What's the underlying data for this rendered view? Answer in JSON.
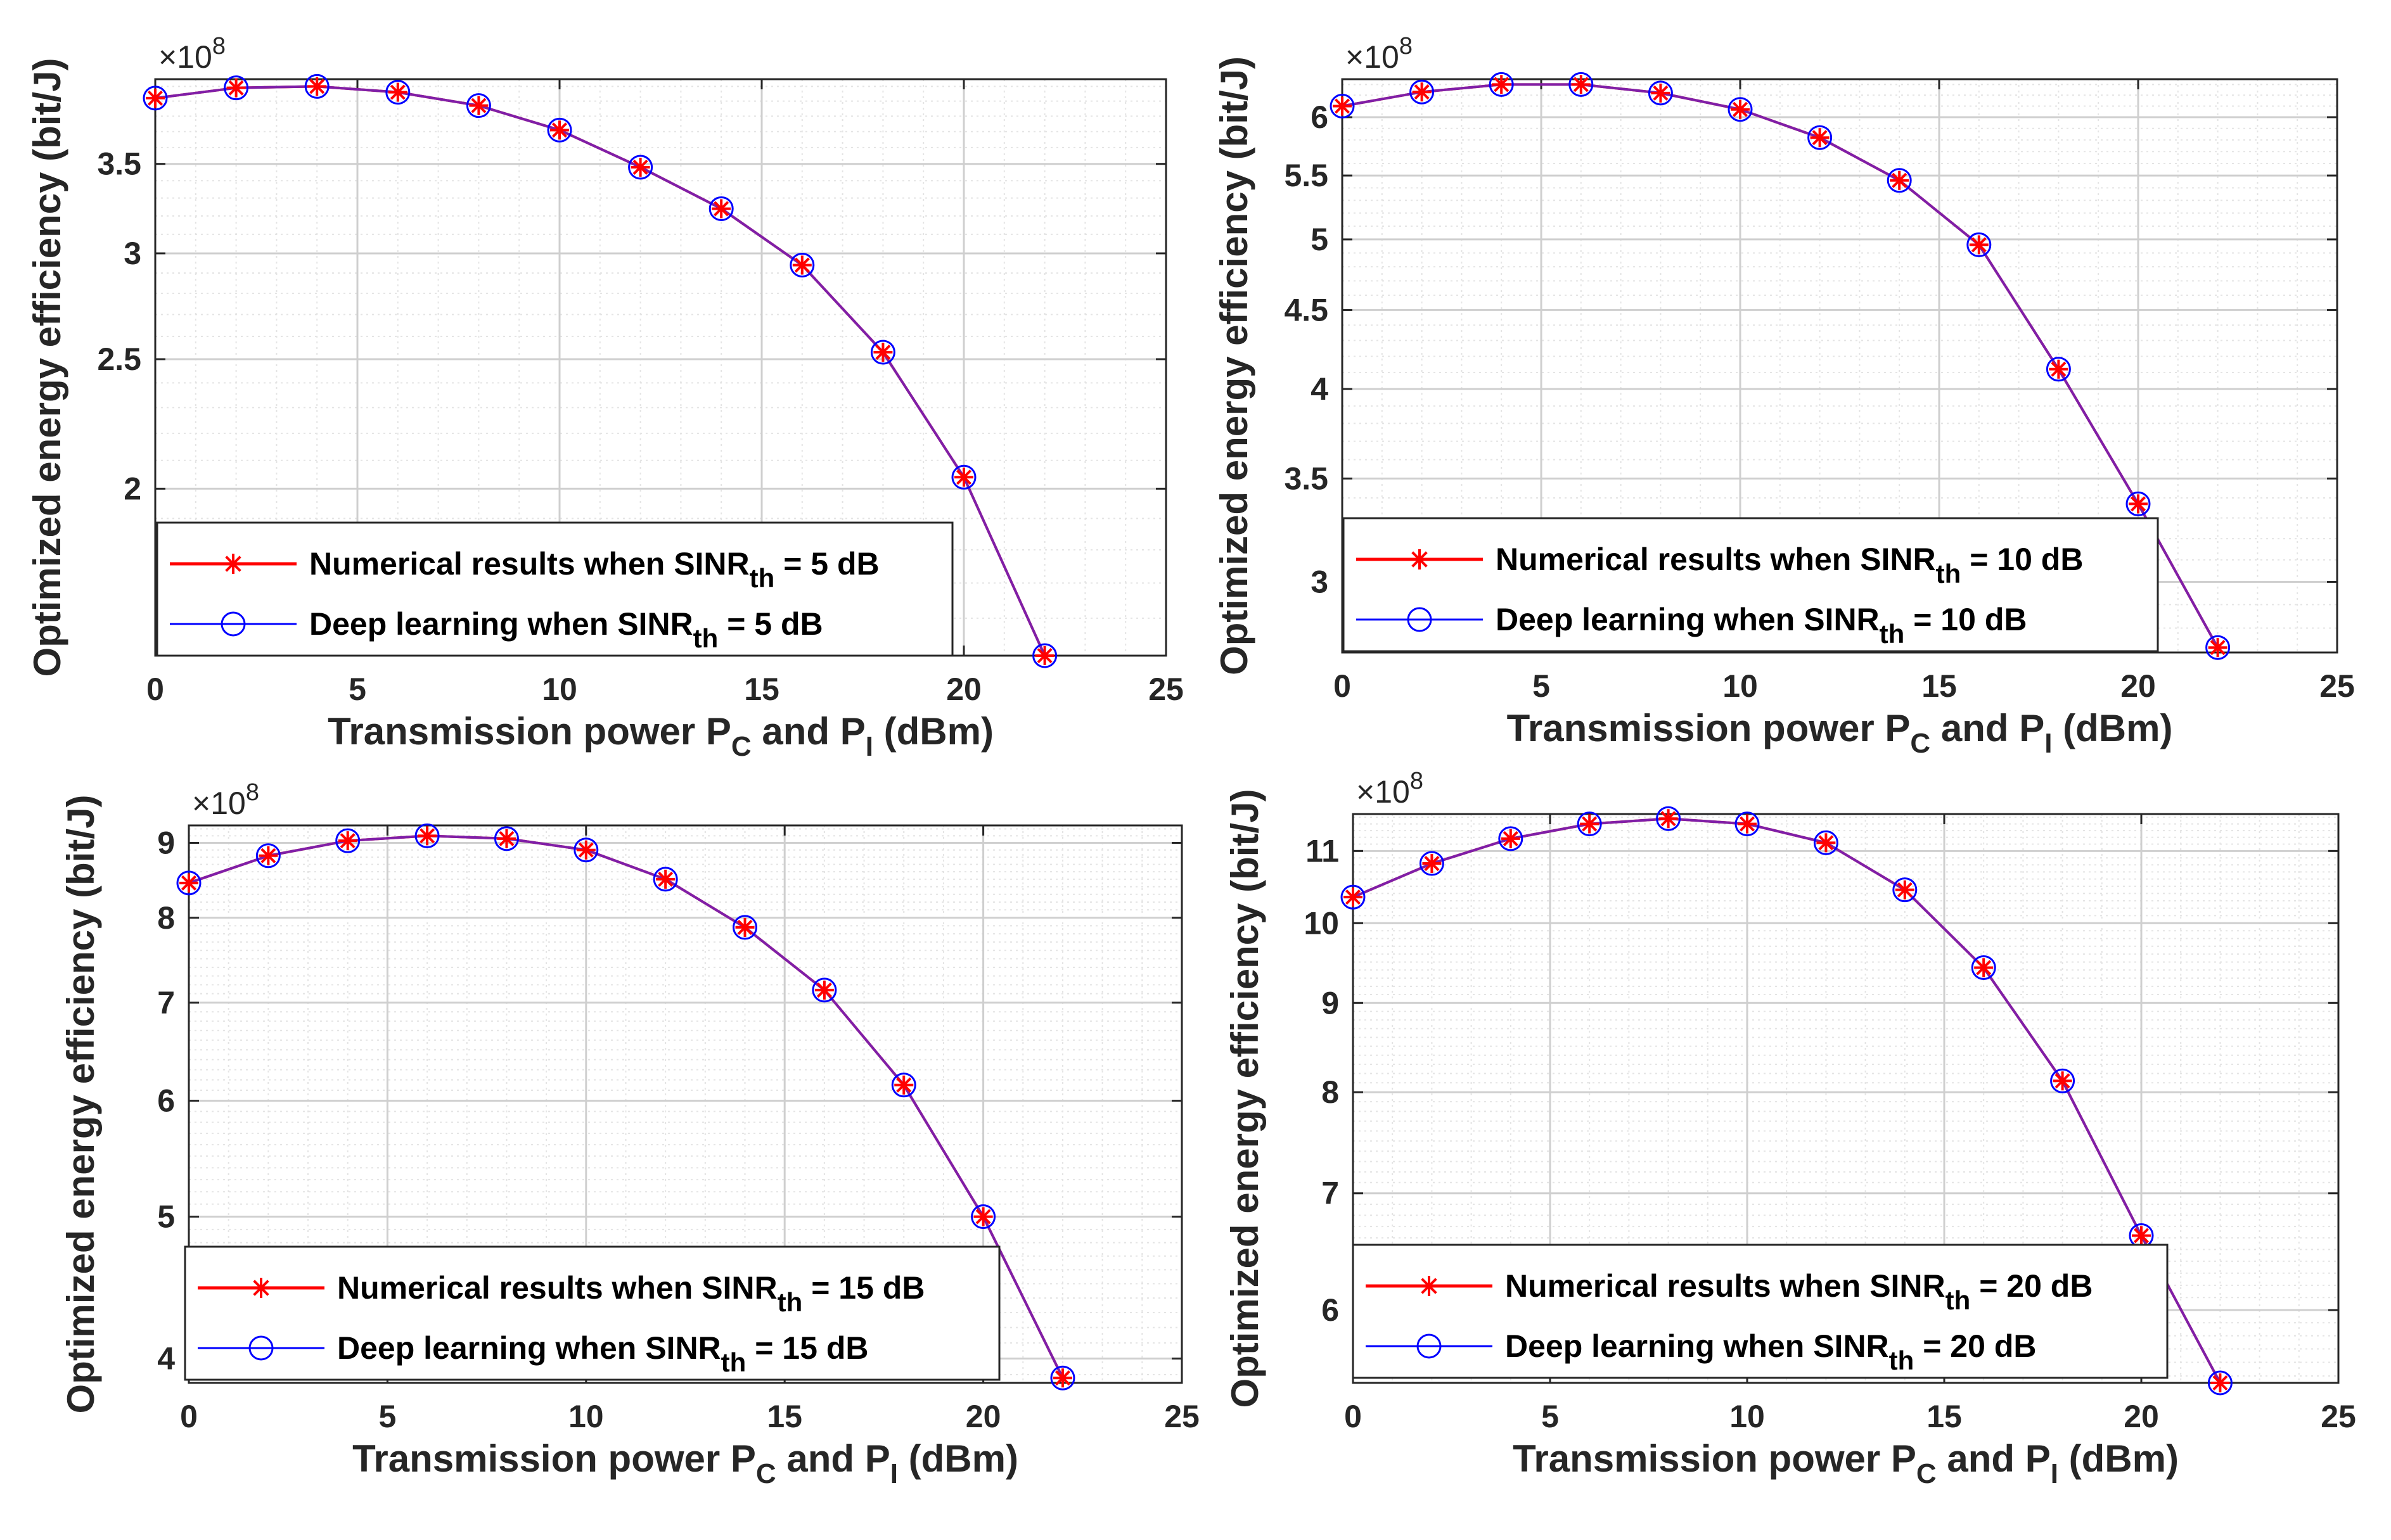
{
  "colors": {
    "numerical": "#ff0000",
    "deep_learning": "#0000ff",
    "overlap_line": "#7f1fa8",
    "grid_major": "#cfcfcf",
    "grid_minor": "#e4e4e4",
    "axes": "#262626"
  },
  "shared": {
    "xlabel_prefix": "Transmission power P",
    "xlabel_sub1": "C",
    "xlabel_mid": " and P",
    "xlabel_sub2": "I",
    "xlabel_suffix": " (dBm)",
    "ylabel": "Optimized energy efficiency (bit/J)",
    "exponent_base": "×10",
    "exponent_power": "8",
    "xlim": [
      0,
      25
    ],
    "xticks": [
      0,
      5,
      10,
      15,
      20,
      25
    ],
    "yscale": "log",
    "grid": "on",
    "legend_location": "bottom-left"
  },
  "chart_data": [
    {
      "type": "line",
      "title": "",
      "ylim": [
        1.5,
        4.05
      ],
      "yticks": [
        2,
        2.5,
        3,
        3.5
      ],
      "ytick_labels": [
        "2",
        "2.5",
        "3",
        "3.5"
      ],
      "x": [
        0,
        2,
        4,
        6,
        8,
        10,
        12,
        14,
        16,
        18,
        20,
        22
      ],
      "series": [
        {
          "name": "Numerical results when SINR",
          "sub": "th",
          "suffix": " = 5 dB",
          "marker": "asterisk",
          "values": [
            3.92,
            3.99,
            4.0,
            3.96,
            3.87,
            3.71,
            3.48,
            3.24,
            2.94,
            2.53,
            2.04,
            1.5
          ]
        },
        {
          "name": "Deep learning when SINR",
          "sub": "th",
          "suffix": " = 5 dB",
          "marker": "circle",
          "values": [
            3.92,
            3.99,
            4.0,
            3.96,
            3.87,
            3.71,
            3.48,
            3.24,
            2.94,
            2.53,
            2.04,
            1.5
          ]
        }
      ]
    },
    {
      "type": "line",
      "title": "",
      "ylim": [
        2.7,
        6.35
      ],
      "yticks": [
        3,
        3.5,
        4,
        4.5,
        5,
        5.5,
        6
      ],
      "ytick_labels": [
        "3",
        "3.5",
        "4",
        "4.5",
        "5",
        "5.5",
        "6"
      ],
      "x": [
        0,
        2,
        4,
        6,
        8,
        10,
        12,
        14,
        16,
        18,
        20,
        22
      ],
      "series": [
        {
          "name": "Numerical results when SINR",
          "sub": "th",
          "suffix": " = 10 dB",
          "marker": "asterisk",
          "values": [
            6.1,
            6.23,
            6.3,
            6.3,
            6.22,
            6.07,
            5.82,
            5.46,
            4.96,
            4.12,
            3.37,
            2.72
          ]
        },
        {
          "name": "Deep learning when SINR",
          "sub": "th",
          "suffix": " = 10 dB",
          "marker": "circle",
          "values": [
            6.1,
            6.23,
            6.3,
            6.3,
            6.22,
            6.07,
            5.82,
            5.46,
            4.96,
            4.12,
            3.37,
            2.72
          ]
        }
      ]
    },
    {
      "type": "line",
      "title": "",
      "ylim": [
        3.85,
        9.25
      ],
      "yticks": [
        4,
        5,
        6,
        7,
        8,
        9
      ],
      "ytick_labels": [
        "4",
        "5",
        "6",
        "7",
        "8",
        "9"
      ],
      "x": [
        0,
        2,
        4,
        6,
        8,
        10,
        12,
        14,
        16,
        18,
        20,
        22
      ],
      "series": [
        {
          "name": "Numerical results when SINR",
          "sub": "th",
          "suffix": " = 15 dB",
          "marker": "asterisk",
          "values": [
            8.45,
            8.82,
            9.03,
            9.1,
            9.06,
            8.9,
            8.5,
            7.88,
            7.14,
            6.15,
            5.0,
            3.88
          ]
        },
        {
          "name": "Deep learning when SINR",
          "sub": "th",
          "suffix": " = 15 dB",
          "marker": "circle",
          "values": [
            8.45,
            8.82,
            9.03,
            9.1,
            9.06,
            8.9,
            8.5,
            7.88,
            7.14,
            6.15,
            5.0,
            3.88
          ]
        }
      ]
    },
    {
      "type": "line",
      "title": "",
      "ylim": [
        5.45,
        11.55
      ],
      "yticks": [
        6,
        7,
        8,
        9,
        10,
        11
      ],
      "ytick_labels": [
        "6",
        "7",
        "8",
        "9",
        "10",
        "11"
      ],
      "x": [
        0,
        2,
        4,
        6,
        8,
        10,
        12,
        14,
        16,
        18,
        20,
        22
      ],
      "series": [
        {
          "name": "Numerical results when SINR",
          "sub": "th",
          "suffix": " = 20 dB",
          "marker": "asterisk",
          "values": [
            10.35,
            10.82,
            11.18,
            11.4,
            11.48,
            11.4,
            11.12,
            10.45,
            9.43,
            8.12,
            6.62,
            5.45
          ]
        },
        {
          "name": "Deep learning when SINR",
          "sub": "th",
          "suffix": " = 20 dB",
          "marker": "circle",
          "values": [
            10.35,
            10.82,
            11.18,
            11.4,
            11.48,
            11.4,
            11.12,
            10.45,
            9.43,
            8.12,
            6.62,
            5.45
          ]
        }
      ]
    }
  ]
}
